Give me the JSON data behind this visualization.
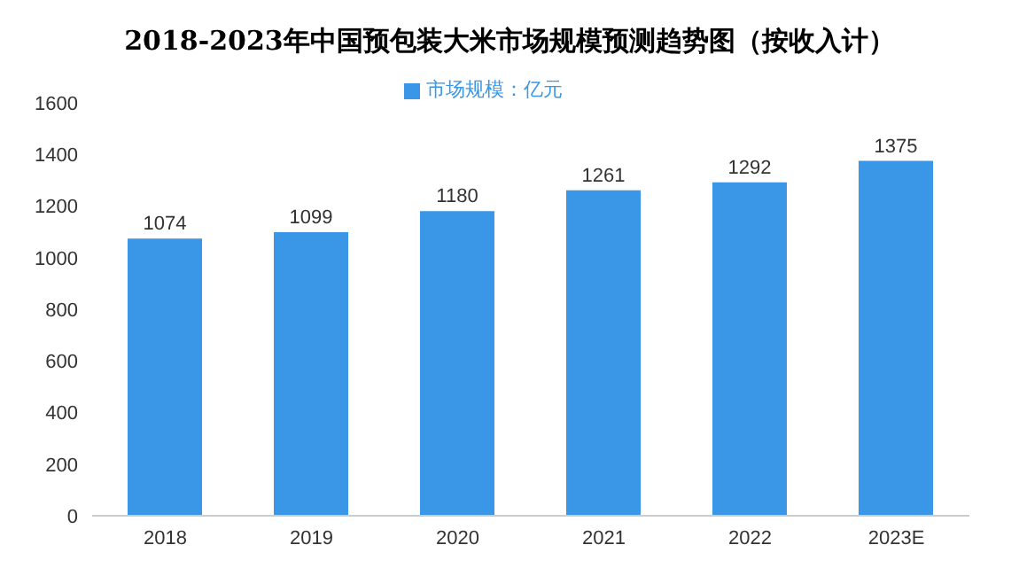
{
  "chart_data": {
    "type": "bar",
    "title": "2018-2023年中国预包装大米市场规模预测趋势图（按收入计）",
    "categories": [
      "2018",
      "2019",
      "2020",
      "2021",
      "2022",
      "2023E"
    ],
    "series": [
      {
        "name": "市场规模：亿元",
        "color": "#3a96e6",
        "values": [
          1074,
          1099,
          1180,
          1261,
          1292,
          1375
        ]
      }
    ],
    "ylim": [
      0,
      1600
    ],
    "yticks": [
      0,
      200,
      400,
      600,
      800,
      1000,
      1200,
      1400,
      1600
    ],
    "grid": false,
    "legend": "top",
    "data_labels": true
  }
}
